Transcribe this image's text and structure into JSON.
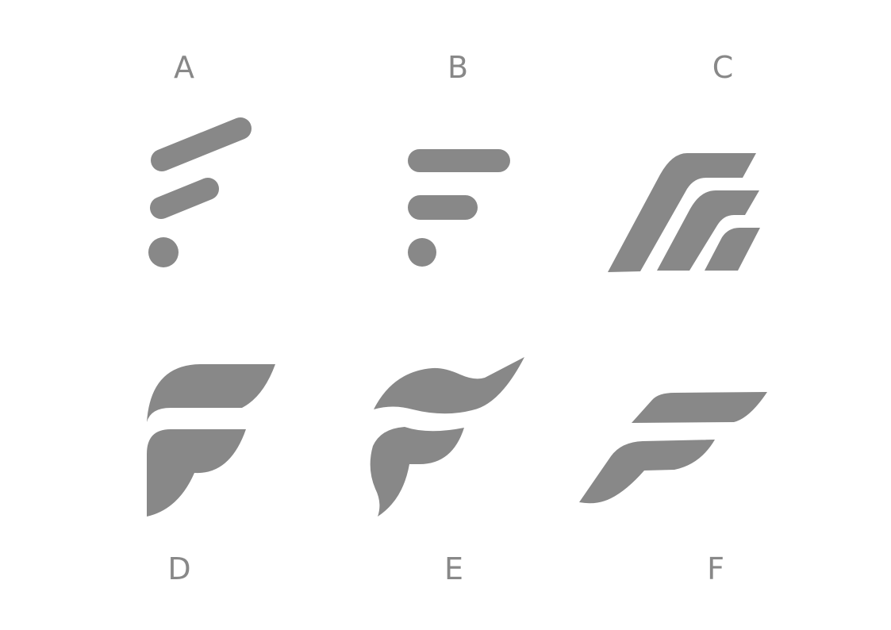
{
  "colors": {
    "shape": "#888888",
    "label": "#888888",
    "background": "#ffffff"
  },
  "options": [
    {
      "label": "A"
    },
    {
      "label": "B"
    },
    {
      "label": "C"
    },
    {
      "label": "D"
    },
    {
      "label": "E"
    },
    {
      "label": "F"
    }
  ]
}
